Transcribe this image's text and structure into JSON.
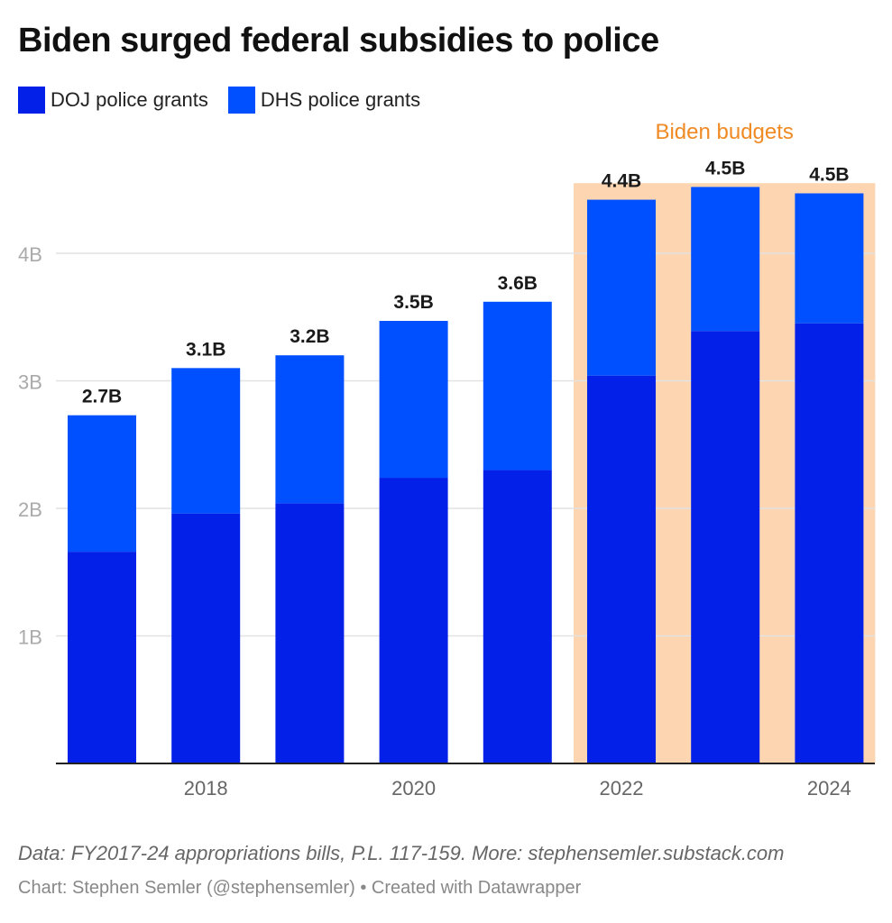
{
  "chart_data": {
    "type": "bar",
    "stacked": true,
    "title": "Biden surged federal subsidies to police",
    "xlabel": "",
    "ylabel": "",
    "ylim": [
      0,
      4.6
    ],
    "y_ticks": [
      1,
      2,
      3,
      4
    ],
    "y_tick_labels": [
      "1B",
      "2B",
      "3B",
      "4B"
    ],
    "grid": true,
    "categories": [
      "2017",
      "2018",
      "2019",
      "2020",
      "2021",
      "2022",
      "2023",
      "2024"
    ],
    "x_tick_labels": [
      {
        "category": "2018",
        "label": "2018"
      },
      {
        "category": "2020",
        "label": "2020"
      },
      {
        "category": "2022",
        "label": "2022"
      },
      {
        "category": "2024",
        "label": "2024"
      }
    ],
    "series": [
      {
        "name": "DOJ police grants",
        "color": "#0320e8",
        "values": [
          1.66,
          1.96,
          2.04,
          2.24,
          2.3,
          3.04,
          3.39,
          3.45
        ]
      },
      {
        "name": "DHS police grants",
        "color": "#0050ff",
        "values": [
          1.07,
          1.14,
          1.16,
          1.23,
          1.32,
          1.38,
          1.13,
          1.02
        ]
      }
    ],
    "total_labels": [
      "2.7B",
      "3.1B",
      "3.2B",
      "3.5B",
      "3.6B",
      "4.4B",
      "4.5B",
      "4.5B"
    ],
    "legend_position": "top-left",
    "highlight": {
      "label": "Biden budgets",
      "from_category": "2022",
      "to_category": "2024",
      "fill_color": "#fdd5b1",
      "text_color": "#f08a24"
    }
  },
  "footer": {
    "source": "Data: FY2017-24 appropriations bills, P.L. 117-159. More: stephensemler.substack.com",
    "credit": "Chart: Stephen Semler (@stephensemler) • Created with Datawrapper"
  }
}
